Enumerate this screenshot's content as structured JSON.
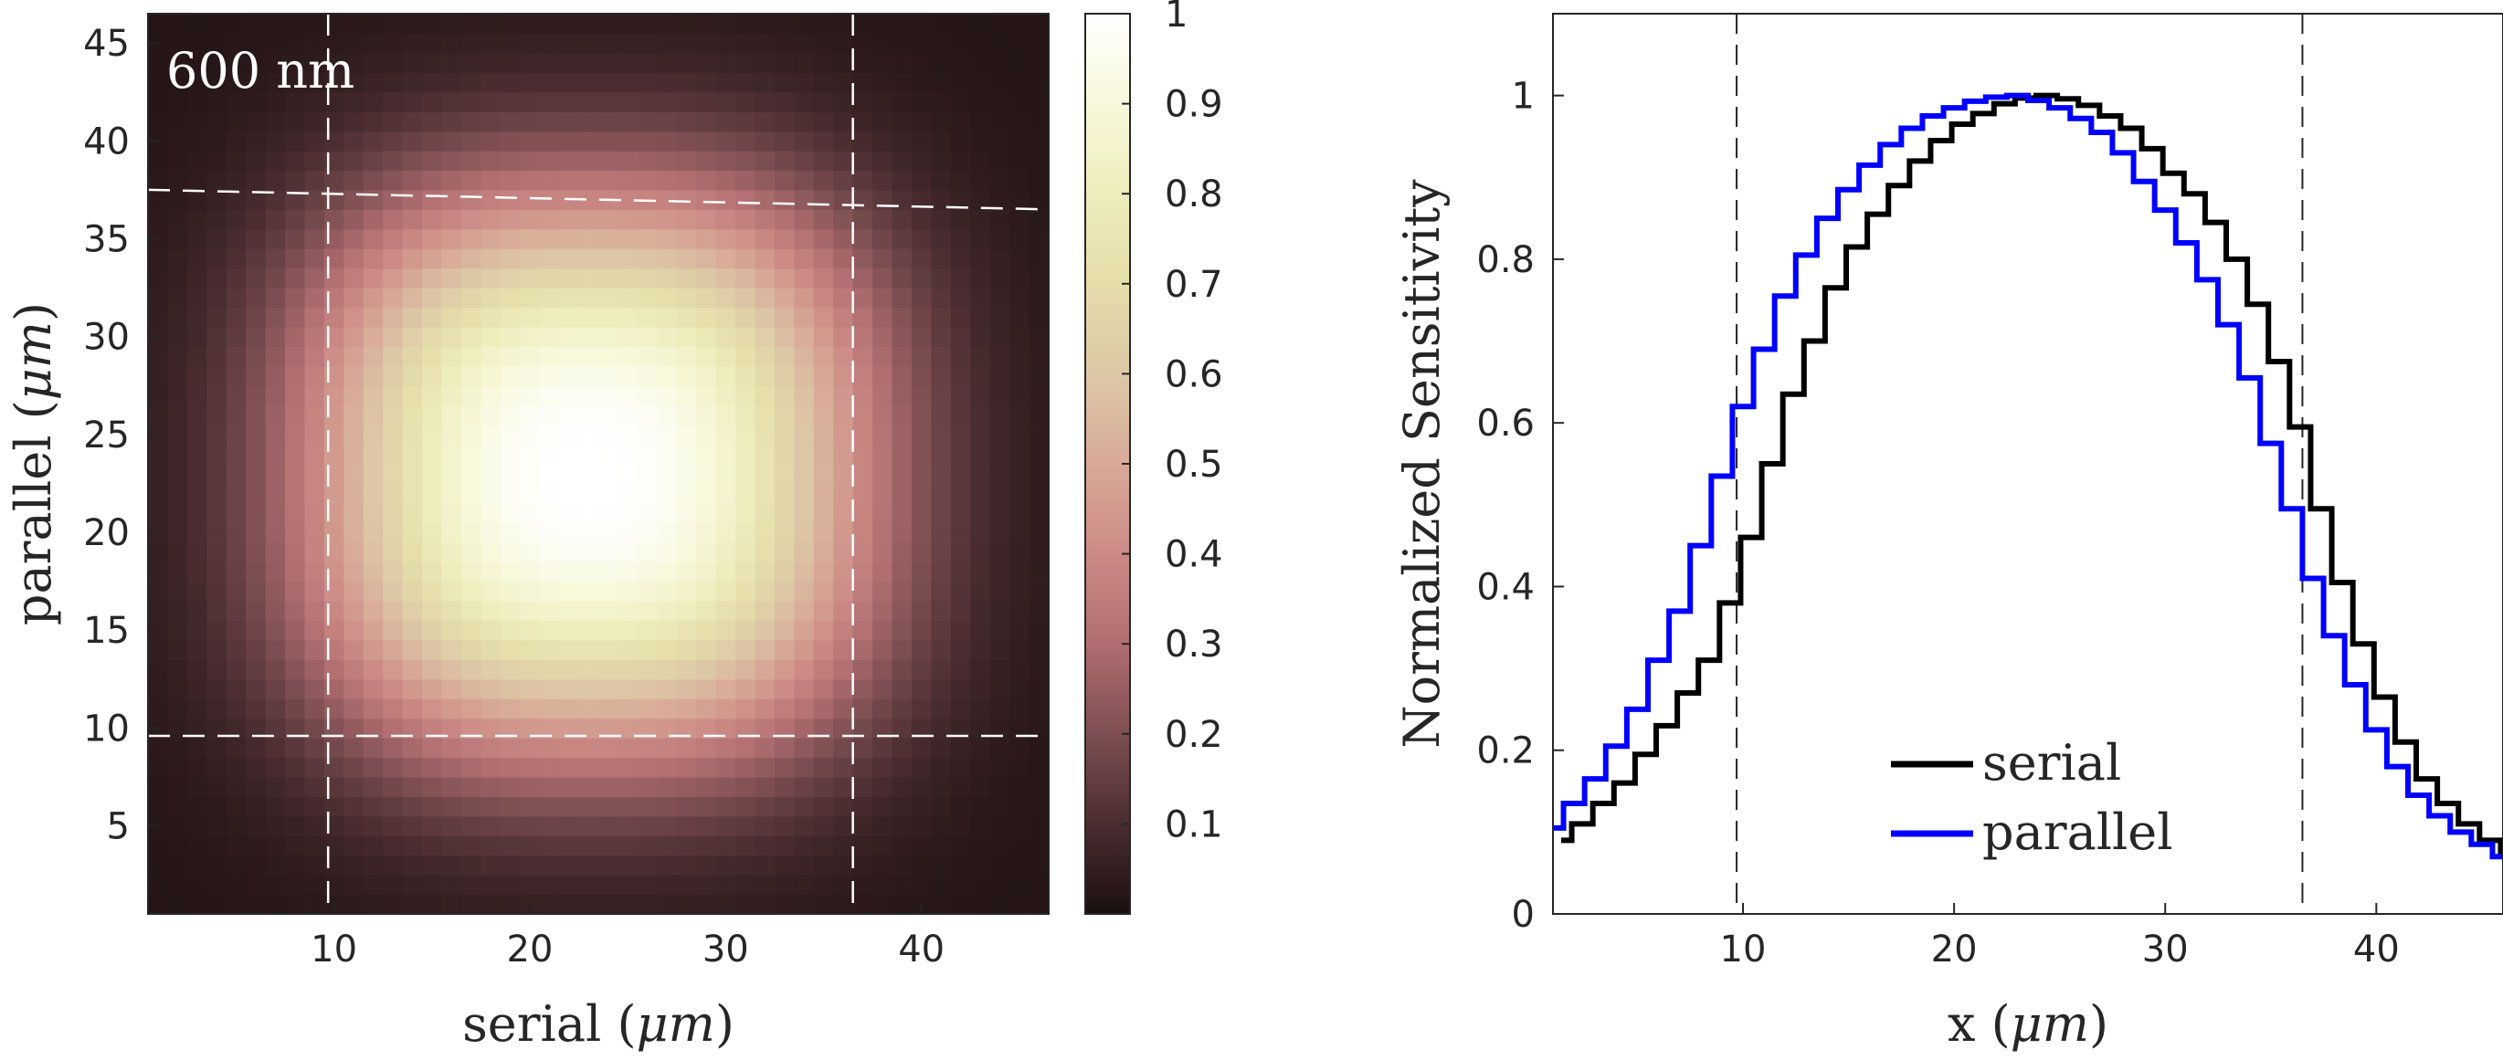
{
  "chart_data": [
    {
      "type": "heatmap",
      "annotation": "600 nm",
      "xlabel": "serial (μm)",
      "ylabel": "parallel (μm)",
      "xlim": [
        1,
        46
      ],
      "ylim": [
        1,
        46
      ],
      "grid_size": [
        46,
        46
      ],
      "x_ticks": [
        10,
        20,
        30,
        40
      ],
      "y_ticks": [
        5,
        10,
        15,
        20,
        25,
        30,
        35,
        40,
        45
      ],
      "value_model": {
        "peak": 1.0,
        "peak_center": [
          23,
          23
        ],
        "half_width_x": 13.5,
        "half_width_y": 13.5,
        "edge_value": 0.02
      },
      "dashed_lines": {
        "vertical_x": [
          9.7,
          36.5
        ],
        "horizontal_y": [
          9.6
        ],
        "tilted": [
          [
            1,
            37.5
          ],
          [
            46,
            36.5
          ]
        ]
      },
      "colorbar": {
        "range": [
          0,
          1
        ],
        "ticks": [
          0.1,
          0.2,
          0.3,
          0.4,
          0.5,
          0.6,
          0.7,
          0.8,
          0.9,
          1
        ],
        "colors": [
          "#1b0f10",
          "#4a2d30",
          "#7e4f52",
          "#b06e71",
          "#cc8a86",
          "#d8aa98",
          "#ddc8a6",
          "#e5ddaa",
          "#eeedbc",
          "#f8f8dc",
          "#ffffff"
        ]
      }
    },
    {
      "type": "line",
      "xlabel": "x (μm)",
      "ylabel": "Normalized Sensitivity",
      "xlim": [
        1,
        46
      ],
      "ylim": [
        0,
        1.1
      ],
      "x_ticks": [
        10,
        20,
        30,
        40
      ],
      "y_ticks": [
        0,
        0.2,
        0.4,
        0.6,
        0.8,
        1
      ],
      "vertical_dashed_x": [
        9.7,
        36.5
      ],
      "legend_position": "bottom-center",
      "series": [
        {
          "name": "serial",
          "color": "#000000",
          "style": "step",
          "x": [
            1,
            2,
            3,
            4,
            5,
            6,
            7,
            8,
            9,
            10,
            11,
            12,
            13,
            14,
            15,
            16,
            17,
            18,
            19,
            20,
            21,
            22,
            23,
            24,
            25,
            26,
            27,
            28,
            29,
            30,
            31,
            32,
            33,
            34,
            35,
            36,
            37,
            38,
            39,
            40,
            41,
            42,
            43,
            44,
            45,
            46
          ],
          "y": [
            0.09,
            0.11,
            0.135,
            0.16,
            0.195,
            0.23,
            0.27,
            0.31,
            0.38,
            0.46,
            0.55,
            0.635,
            0.7,
            0.765,
            0.815,
            0.855,
            0.89,
            0.92,
            0.945,
            0.965,
            0.978,
            0.99,
            0.997,
            1.0,
            0.996,
            0.988,
            0.975,
            0.96,
            0.935,
            0.905,
            0.88,
            0.845,
            0.8,
            0.745,
            0.675,
            0.595,
            0.495,
            0.405,
            0.33,
            0.265,
            0.21,
            0.165,
            0.135,
            0.11,
            0.09,
            0.075
          ]
        },
        {
          "name": "parallel",
          "color": "#0000ff",
          "style": "step",
          "x": [
            1,
            2,
            3,
            4,
            5,
            6,
            7,
            8,
            9,
            10,
            11,
            12,
            13,
            14,
            15,
            16,
            17,
            18,
            19,
            20,
            21,
            22,
            23,
            24,
            25,
            26,
            27,
            28,
            29,
            30,
            31,
            32,
            33,
            34,
            35,
            36,
            37,
            38,
            39,
            40,
            41,
            42,
            43,
            44,
            45,
            46
          ],
          "y": [
            0.105,
            0.135,
            0.165,
            0.205,
            0.25,
            0.31,
            0.37,
            0.45,
            0.535,
            0.62,
            0.69,
            0.755,
            0.805,
            0.85,
            0.885,
            0.915,
            0.94,
            0.96,
            0.975,
            0.985,
            0.993,
            0.998,
            1.0,
            0.994,
            0.985,
            0.972,
            0.955,
            0.93,
            0.895,
            0.86,
            0.82,
            0.775,
            0.72,
            0.655,
            0.575,
            0.495,
            0.41,
            0.34,
            0.28,
            0.225,
            0.18,
            0.145,
            0.12,
            0.1,
            0.085,
            0.07
          ]
        }
      ]
    }
  ]
}
